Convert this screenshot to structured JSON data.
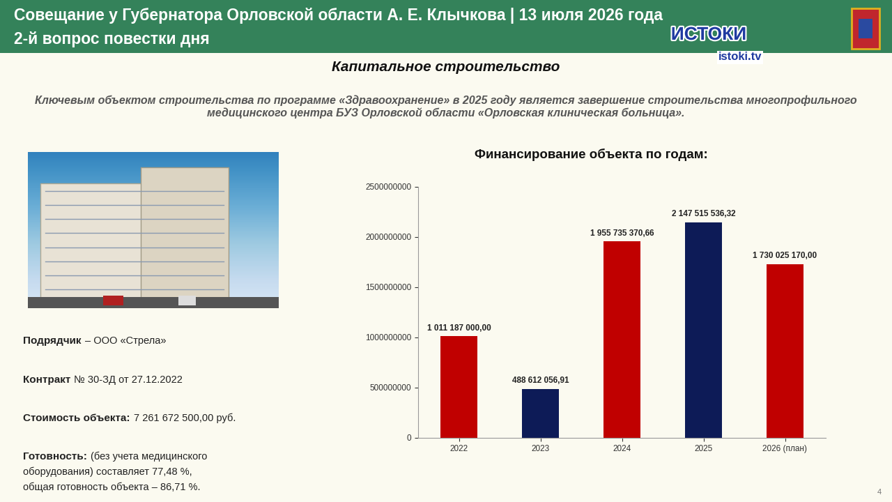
{
  "header": {
    "title": "Совещание у Губернатора Орловской области А. Е. Клычкова | 13 июля 2026 года",
    "agenda": "2-й вопрос повестки дня",
    "logo": "ИСТОКИ",
    "site": "istoki.tv"
  },
  "slide": {
    "section": "Капитальное строительство",
    "intro": "Ключевым объектом строительства по программе «Здравоохранение» в 2025 году является завершение строительства многопрофильного медицинского центра БУЗ Орловской области «Орловская клиническая больница».",
    "facts": [
      {
        "label": "Подрядчик",
        "lines": [
          "– ООО «Стрела»"
        ]
      },
      {
        "label": "Контракт",
        "lines": [
          "№ 30-ЗД от 27.12.2022"
        ]
      },
      {
        "label": "Стоимость объекта:",
        "lines": [
          "7 261 672 500,00 руб."
        ]
      },
      {
        "label": "Готовность:",
        "lines": [
          "(без учета медицинского",
          "оборудования) составляет 77,48 %,",
          "общая готовность объекта – 86,71 %."
        ]
      }
    ],
    "page": "4"
  },
  "chart_data": {
    "type": "bar",
    "title": "Финансирование объекта по годам:",
    "categories": [
      "2022",
      "2023",
      "2024",
      "2025",
      "2026 (план)"
    ],
    "values": [
      1011187000.0,
      488612056.91,
      1955735370.66,
      2147515536.32,
      1730025170.0
    ],
    "value_labels": [
      "1 011 187 000,00",
      "488 612 056,91",
      "1 955 735 370,66",
      "2 147 515 536,32",
      "1 730 025 170,00"
    ],
    "colors": [
      "#c00000",
      "#0d1b57",
      "#c00000",
      "#0d1b57",
      "#c00000"
    ],
    "ylim": [
      0,
      2500000000
    ],
    "yticks": [
      0,
      500000000,
      1000000000,
      1500000000,
      2000000000,
      2500000000
    ],
    "grid": false,
    "data_labels": true
  }
}
